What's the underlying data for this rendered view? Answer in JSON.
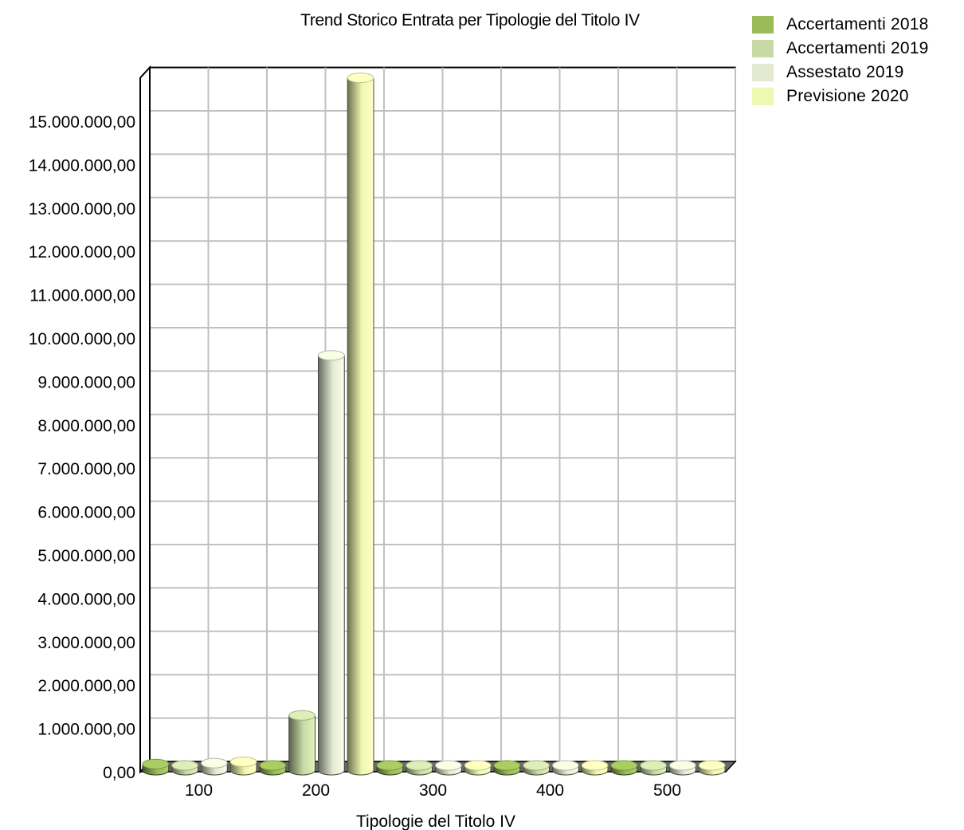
{
  "chart_data": {
    "type": "bar",
    "title": "Trend Storico Entrata per Tipologie del Titolo IV",
    "xlabel": "Tipologie del Titolo IV",
    "ylabel": "",
    "categories": [
      "100",
      "200",
      "300",
      "400",
      "500"
    ],
    "ylim": [
      0,
      16000000
    ],
    "yticks": [
      0,
      1000000,
      2000000,
      3000000,
      4000000,
      5000000,
      6000000,
      7000000,
      8000000,
      9000000,
      10000000,
      11000000,
      12000000,
      13000000,
      14000000,
      15000000
    ],
    "ytick_labels": [
      "0,00",
      "1.000.000,00",
      "2.000.000,00",
      "3.000.000,00",
      "4.000.000,00",
      "5.000.000,00",
      "6.000.000,00",
      "7.000.000,00",
      "8.000.000,00",
      "9.000.000,00",
      "10.000.000,00",
      "11.000.000,00",
      "12.000.000,00",
      "13.000.000,00",
      "14.000.000,00",
      "15.000.000,00"
    ],
    "grid": true,
    "legend_position": "top-right",
    "series": [
      {
        "name": "Accertamenti 2018",
        "color": "#9bbb59",
        "values": [
          180000,
          0,
          0,
          0,
          120000
        ]
      },
      {
        "name": "Accertamenti 2019",
        "color": "#c9d9a6",
        "values": [
          120000,
          1300000,
          0,
          0,
          120000
        ]
      },
      {
        "name": "Assestato 2019",
        "color": "#e2ead2",
        "values": [
          200000,
          9600000,
          0,
          0,
          120000
        ]
      },
      {
        "name": "Previsione 2020",
        "color": "#eef8b0",
        "values": [
          230000,
          16000000,
          0,
          0,
          100000
        ]
      }
    ]
  }
}
